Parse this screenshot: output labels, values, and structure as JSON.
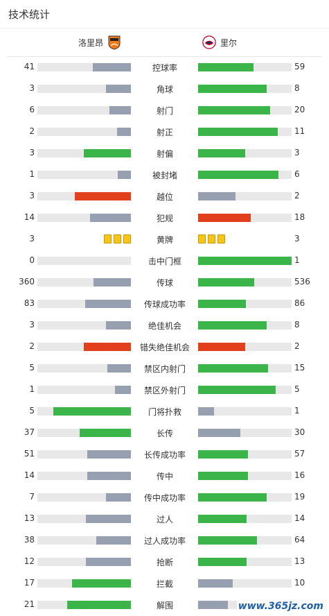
{
  "title": "技术统计",
  "home": {
    "name": "洛里昂"
  },
  "away": {
    "name": "里尔"
  },
  "colors": {
    "green": "#3bb54a",
    "gray": "#97a0b1",
    "red": "#e2401c",
    "track": "#e8e8e8",
    "card": "#f5c518"
  },
  "stats": [
    {
      "label": "控球率",
      "home": "41",
      "away": "59",
      "home_ratio": 0.41,
      "away_ratio": 0.59,
      "home_color": "gray",
      "away_color": "green"
    },
    {
      "label": "角球",
      "home": "3",
      "away": "8",
      "home_ratio": 0.27,
      "away_ratio": 0.73,
      "home_color": "gray",
      "away_color": "green"
    },
    {
      "label": "射门",
      "home": "6",
      "away": "20",
      "home_ratio": 0.23,
      "away_ratio": 0.77,
      "home_color": "gray",
      "away_color": "green"
    },
    {
      "label": "射正",
      "home": "2",
      "away": "11",
      "home_ratio": 0.15,
      "away_ratio": 0.85,
      "home_color": "gray",
      "away_color": "green"
    },
    {
      "label": "射偏",
      "home": "3",
      "away": "3",
      "home_ratio": 0.5,
      "away_ratio": 0.5,
      "home_color": "green",
      "away_color": "green"
    },
    {
      "label": "被封堵",
      "home": "1",
      "away": "6",
      "home_ratio": 0.14,
      "away_ratio": 0.86,
      "home_color": "gray",
      "away_color": "green"
    },
    {
      "label": "越位",
      "home": "3",
      "away": "2",
      "home_ratio": 0.6,
      "away_ratio": 0.4,
      "home_color": "red",
      "away_color": "gray"
    },
    {
      "label": "犯规",
      "home": "14",
      "away": "18",
      "home_ratio": 0.44,
      "away_ratio": 0.56,
      "home_color": "gray",
      "away_color": "red"
    },
    {
      "label": "黄牌",
      "home": "3",
      "away": "3",
      "type": "cards",
      "home_cards": 3,
      "away_cards": 3
    },
    {
      "label": "击中门框",
      "home": "0",
      "away": "1",
      "home_ratio": 0.0,
      "away_ratio": 1.0,
      "home_color": "gray",
      "away_color": "green"
    },
    {
      "label": "传球",
      "home": "360",
      "away": "536",
      "home_ratio": 0.4,
      "away_ratio": 0.6,
      "home_color": "gray",
      "away_color": "green"
    },
    {
      "label": "传球成功率",
      "home": "83",
      "away": "86",
      "home_ratio": 0.49,
      "away_ratio": 0.51,
      "home_color": "gray",
      "away_color": "green"
    },
    {
      "label": "绝佳机会",
      "home": "3",
      "away": "8",
      "home_ratio": 0.27,
      "away_ratio": 0.73,
      "home_color": "gray",
      "away_color": "green"
    },
    {
      "label": "错失绝佳机会",
      "home": "2",
      "away": "2",
      "home_ratio": 0.5,
      "away_ratio": 0.5,
      "home_color": "red",
      "away_color": "red"
    },
    {
      "label": "禁区内射门",
      "home": "5",
      "away": "15",
      "home_ratio": 0.25,
      "away_ratio": 0.75,
      "home_color": "gray",
      "away_color": "green"
    },
    {
      "label": "禁区外射门",
      "home": "1",
      "away": "5",
      "home_ratio": 0.17,
      "away_ratio": 0.83,
      "home_color": "gray",
      "away_color": "green"
    },
    {
      "label": "门将扑救",
      "home": "5",
      "away": "1",
      "home_ratio": 0.83,
      "away_ratio": 0.17,
      "home_color": "green",
      "away_color": "gray"
    },
    {
      "label": "长传",
      "home": "37",
      "away": "30",
      "home_ratio": 0.55,
      "away_ratio": 0.45,
      "home_color": "green",
      "away_color": "gray"
    },
    {
      "label": "长传成功率",
      "home": "51",
      "away": "57",
      "home_ratio": 0.47,
      "away_ratio": 0.53,
      "home_color": "gray",
      "away_color": "green"
    },
    {
      "label": "传中",
      "home": "14",
      "away": "16",
      "home_ratio": 0.47,
      "away_ratio": 0.53,
      "home_color": "gray",
      "away_color": "green"
    },
    {
      "label": "传中成功率",
      "home": "7",
      "away": "19",
      "home_ratio": 0.27,
      "away_ratio": 0.73,
      "home_color": "gray",
      "away_color": "green"
    },
    {
      "label": "过人",
      "home": "13",
      "away": "14",
      "home_ratio": 0.48,
      "away_ratio": 0.52,
      "home_color": "gray",
      "away_color": "green"
    },
    {
      "label": "过人成功率",
      "home": "38",
      "away": "64",
      "home_ratio": 0.37,
      "away_ratio": 0.63,
      "home_color": "gray",
      "away_color": "green"
    },
    {
      "label": "抢断",
      "home": "12",
      "away": "13",
      "home_ratio": 0.48,
      "away_ratio": 0.52,
      "home_color": "gray",
      "away_color": "green"
    },
    {
      "label": "拦截",
      "home": "17",
      "away": "10",
      "home_ratio": 0.63,
      "away_ratio": 0.37,
      "home_color": "green",
      "away_color": "gray"
    },
    {
      "label": "解围",
      "home": "21",
      "away": "",
      "home_ratio": 0.68,
      "away_ratio": 0.32,
      "home_color": "green",
      "away_color": "gray"
    }
  ],
  "watermark": "www.365jz.com"
}
